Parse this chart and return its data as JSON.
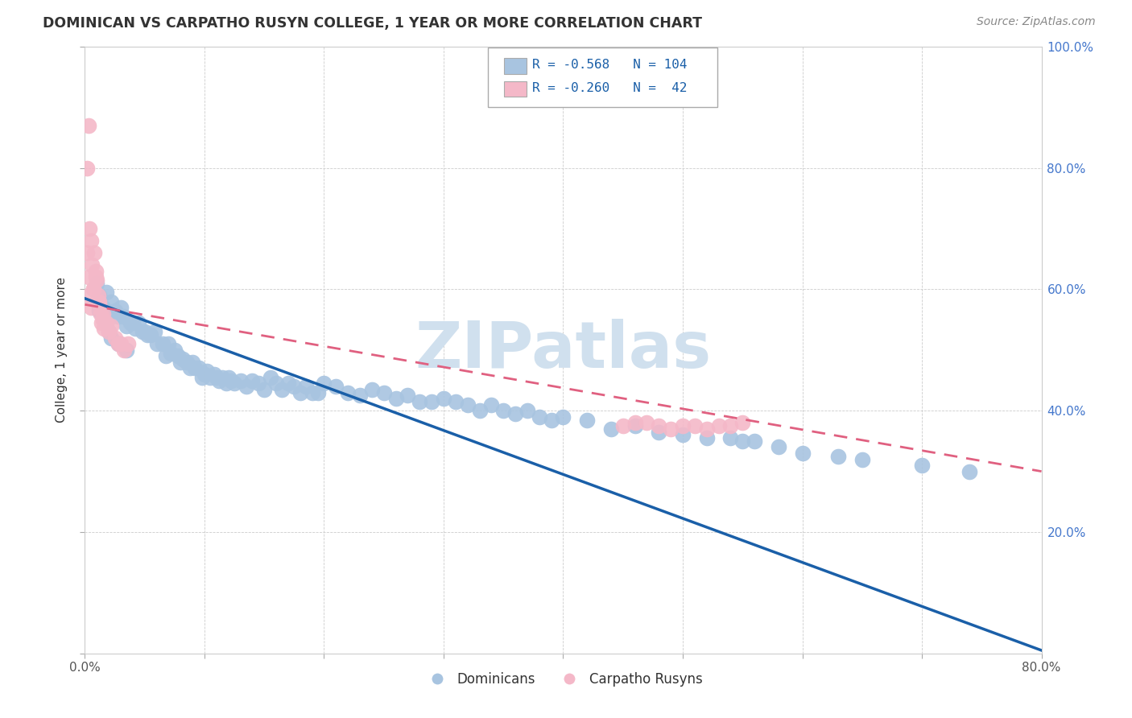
{
  "title": "DOMINICAN VS CARPATHO RUSYN COLLEGE, 1 YEAR OR MORE CORRELATION CHART",
  "source": "Source: ZipAtlas.com",
  "ylabel": "College, 1 year or more",
  "xlim": [
    0.0,
    0.8
  ],
  "ylim": [
    0.0,
    1.0
  ],
  "x_tick_positions": [
    0.0,
    0.1,
    0.2,
    0.3,
    0.4,
    0.5,
    0.6,
    0.7,
    0.8
  ],
  "x_tick_labels": [
    "0.0%",
    "",
    "",
    "",
    "",
    "",
    "",
    "",
    "80.0%"
  ],
  "y_tick_positions": [
    0.0,
    0.2,
    0.4,
    0.6,
    0.8,
    1.0
  ],
  "y_tick_labels_right": [
    "",
    "20.0%",
    "40.0%",
    "60.0%",
    "80.0%",
    "100.0%"
  ],
  "dominican_color": "#a8c4e0",
  "carpatho_color": "#f4b8c8",
  "line_dominican_color": "#1a5fa8",
  "line_carpatho_color": "#e06080",
  "watermark_color": "#d0e0ee",
  "dom_line_x0": 0.0,
  "dom_line_y0": 0.585,
  "dom_line_x1": 0.8,
  "dom_line_y1": 0.005,
  "carp_line_x0": 0.0,
  "carp_line_y0": 0.575,
  "carp_line_x1": 0.8,
  "carp_line_y1": 0.3,
  "dom_R": -0.568,
  "dom_N": 104,
  "carp_R": -0.26,
  "carp_N": 42,
  "dominican_x": [
    0.01,
    0.012,
    0.015,
    0.018,
    0.02,
    0.022,
    0.025,
    0.028,
    0.03,
    0.032,
    0.035,
    0.038,
    0.04,
    0.042,
    0.045,
    0.048,
    0.05,
    0.052,
    0.055,
    0.058,
    0.06,
    0.065,
    0.068,
    0.07,
    0.072,
    0.075,
    0.078,
    0.08,
    0.082,
    0.085,
    0.088,
    0.09,
    0.092,
    0.095,
    0.098,
    0.1,
    0.102,
    0.105,
    0.108,
    0.11,
    0.112,
    0.115,
    0.118,
    0.12,
    0.122,
    0.125,
    0.13,
    0.135,
    0.14,
    0.145,
    0.15,
    0.155,
    0.16,
    0.165,
    0.17,
    0.175,
    0.18,
    0.185,
    0.19,
    0.195,
    0.2,
    0.21,
    0.22,
    0.23,
    0.24,
    0.25,
    0.26,
    0.27,
    0.28,
    0.29,
    0.3,
    0.31,
    0.32,
    0.33,
    0.34,
    0.35,
    0.36,
    0.37,
    0.38,
    0.39,
    0.4,
    0.42,
    0.44,
    0.46,
    0.48,
    0.5,
    0.52,
    0.54,
    0.55,
    0.56,
    0.58,
    0.6,
    0.63,
    0.65,
    0.7,
    0.74,
    0.035,
    0.028,
    0.022,
    0.02,
    0.018,
    0.015,
    0.012,
    0.01
  ],
  "dominican_y": [
    0.61,
    0.59,
    0.57,
    0.595,
    0.56,
    0.58,
    0.565,
    0.555,
    0.57,
    0.555,
    0.54,
    0.545,
    0.545,
    0.535,
    0.545,
    0.53,
    0.53,
    0.525,
    0.525,
    0.53,
    0.51,
    0.51,
    0.49,
    0.51,
    0.495,
    0.5,
    0.49,
    0.48,
    0.485,
    0.48,
    0.47,
    0.48,
    0.47,
    0.47,
    0.455,
    0.46,
    0.465,
    0.455,
    0.46,
    0.455,
    0.45,
    0.455,
    0.445,
    0.455,
    0.45,
    0.445,
    0.45,
    0.44,
    0.45,
    0.445,
    0.435,
    0.455,
    0.445,
    0.435,
    0.445,
    0.44,
    0.43,
    0.44,
    0.43,
    0.43,
    0.445,
    0.44,
    0.43,
    0.425,
    0.435,
    0.43,
    0.42,
    0.425,
    0.415,
    0.415,
    0.42,
    0.415,
    0.41,
    0.4,
    0.41,
    0.4,
    0.395,
    0.4,
    0.39,
    0.385,
    0.39,
    0.385,
    0.37,
    0.375,
    0.365,
    0.36,
    0.355,
    0.355,
    0.35,
    0.35,
    0.34,
    0.33,
    0.325,
    0.32,
    0.31,
    0.3,
    0.5,
    0.51,
    0.52,
    0.53,
    0.545,
    0.555,
    0.565,
    0.58
  ],
  "carpatho_x": [
    0.002,
    0.003,
    0.004,
    0.005,
    0.006,
    0.007,
    0.008,
    0.009,
    0.01,
    0.011,
    0.012,
    0.013,
    0.014,
    0.015,
    0.016,
    0.018,
    0.02,
    0.022,
    0.025,
    0.028,
    0.03,
    0.033,
    0.036,
    0.003,
    0.005,
    0.007,
    0.009,
    0.012,
    0.015,
    0.002,
    0.45,
    0.46,
    0.47,
    0.48,
    0.49,
    0.5,
    0.51,
    0.52,
    0.53,
    0.54,
    0.003,
    0.55
  ],
  "carpatho_y": [
    0.66,
    0.62,
    0.7,
    0.68,
    0.64,
    0.6,
    0.66,
    0.63,
    0.615,
    0.59,
    0.575,
    0.56,
    0.545,
    0.55,
    0.535,
    0.545,
    0.53,
    0.54,
    0.52,
    0.51,
    0.51,
    0.5,
    0.51,
    0.59,
    0.57,
    0.6,
    0.62,
    0.58,
    0.56,
    0.8,
    0.375,
    0.38,
    0.38,
    0.375,
    0.37,
    0.375,
    0.375,
    0.37,
    0.375,
    0.375,
    0.87,
    0.38
  ]
}
